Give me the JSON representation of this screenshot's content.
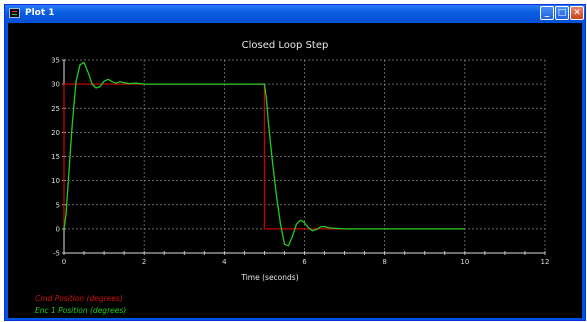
{
  "window": {
    "title": "Plot 1",
    "icon": "plot-app-icon"
  },
  "controls": {
    "minimize": "_",
    "maximize": "□",
    "close": "✕"
  },
  "chart_data": {
    "type": "line",
    "title": "Closed Loop Step",
    "xlabel": "Time (seconds)",
    "ylabel": "",
    "xlim": [
      0,
      12
    ],
    "ylim": [
      -5,
      35
    ],
    "xticks": [
      0,
      2,
      4,
      6,
      8,
      10,
      12
    ],
    "yticks": [
      -5,
      0,
      5,
      10,
      15,
      20,
      25,
      30,
      35
    ],
    "grid": true,
    "legend_position": "bottom-left",
    "series": [
      {
        "name": "Cmd Position (degrees)",
        "color": "#cc0000",
        "x": [
          0,
          0,
          5.0,
          5.0,
          10.0
        ],
        "y": [
          0,
          30,
          30,
          0,
          0
        ]
      },
      {
        "name": "Enc 1 Position (degrees)",
        "color": "#22cc22",
        "x": [
          0,
          0.05,
          0.1,
          0.2,
          0.3,
          0.4,
          0.5,
          0.6,
          0.7,
          0.8,
          0.9,
          1.0,
          1.1,
          1.2,
          1.3,
          1.4,
          1.5,
          1.6,
          1.8,
          2.0,
          3.0,
          4.0,
          5.0,
          5.05,
          5.1,
          5.2,
          5.3,
          5.4,
          5.5,
          5.6,
          5.7,
          5.8,
          5.9,
          6.0,
          6.1,
          6.2,
          6.3,
          6.4,
          6.5,
          6.6,
          6.8,
          7.0,
          8.0,
          10.0
        ],
        "y": [
          0,
          3,
          9,
          21,
          30.5,
          34,
          34.5,
          32.5,
          30,
          29.2,
          29.5,
          30.6,
          31,
          30.5,
          30.2,
          30.5,
          30.3,
          30.1,
          30.2,
          30,
          30,
          30,
          30,
          27,
          22,
          14,
          7,
          1,
          -3.2,
          -3.5,
          -1.5,
          1,
          1.8,
          1.3,
          0.2,
          -0.4,
          -0.1,
          0.4,
          0.5,
          0.2,
          0.1,
          0,
          0,
          0
        ]
      }
    ]
  }
}
